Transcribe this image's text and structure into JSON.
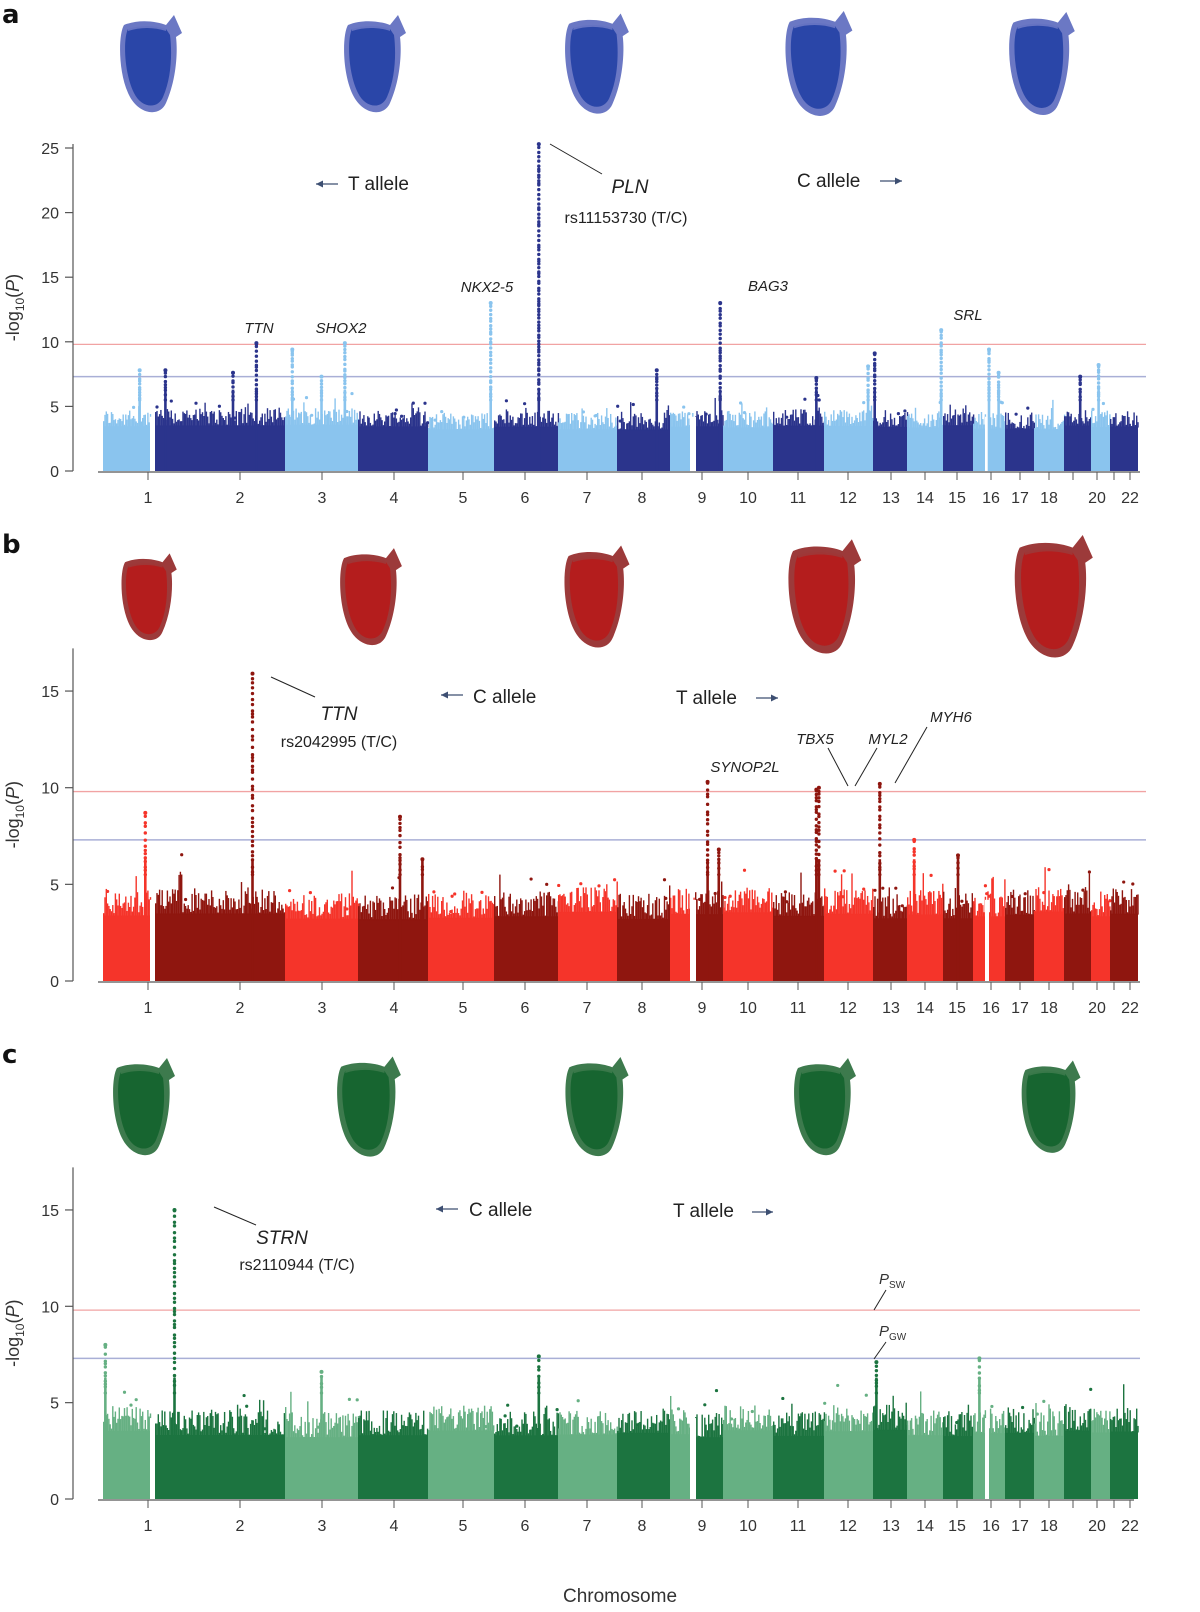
{
  "figure": {
    "xlabel": "Chromosome",
    "panels": [
      {
        "letter": "a",
        "heart_color": "blue",
        "heart_count": 5
      },
      {
        "letter": "b",
        "heart_color": "red",
        "heart_count": 5
      },
      {
        "letter": "c",
        "heart_color": "green",
        "heart_count": 5
      }
    ]
  },
  "colors": {
    "a": {
      "light": "#8ac4ee",
      "dark": "#2b348c",
      "heart_fill": "#2a46a8",
      "heart_rim": "#6b78c4"
    },
    "b": {
      "light": "#f5342a",
      "dark": "#8f160f",
      "heart_fill": "#b41d1d",
      "heart_rim": "#9c3a3a"
    },
    "c": {
      "light": "#66b083",
      "dark": "#1c7440",
      "heart_fill": "#176530",
      "heart_rim": "#3d7a4d"
    },
    "suggestive_line": "#f1a3a3",
    "genomewide_line": "#a9afd6",
    "arrow": "#3d4f72"
  },
  "chart_data": [
    {
      "type": "scatter",
      "subtype": "manhattan",
      "panel": "a",
      "ylabel": "-log10(P)",
      "xlabel": "",
      "ylim": [
        0,
        25
      ],
      "yticks": [
        0,
        5,
        10,
        15,
        20,
        25
      ],
      "chromosomes": [
        "1",
        "2",
        "3",
        "4",
        "5",
        "6",
        "7",
        "8",
        "9",
        "10",
        "11",
        "12",
        "13",
        "14",
        "15",
        "16",
        "17",
        "18",
        "19",
        "20",
        "21",
        "22"
      ],
      "xtick_labels": [
        "1",
        "2",
        "3",
        "4",
        "5",
        "6",
        "7",
        "8",
        "9",
        "10",
        "11",
        "12",
        "13",
        "14",
        "15",
        "16",
        "17",
        "18",
        "20",
        "22"
      ],
      "thresholds": {
        "suggestive": 9.8,
        "genome_wide": 7.3
      },
      "allele_left": "T allele",
      "allele_right": "C allele",
      "background_max": [
        5.5,
        5.2,
        5.0,
        5.0,
        5.0,
        5.0,
        5.0,
        5.0,
        4.8,
        5.0,
        5.0,
        5.0,
        5.0,
        5.0,
        5.0,
        5.0,
        5.0,
        5.0,
        5.0,
        5.0,
        5.0,
        5.0
      ],
      "peaks": [
        {
          "chr": "1",
          "pos": 0.78,
          "value": 7.8
        },
        {
          "chr": "2",
          "pos": 0.08,
          "value": 7.8
        },
        {
          "chr": "2",
          "pos": 0.6,
          "value": 7.6
        },
        {
          "chr": "2",
          "pos": 0.78,
          "value": 9.9,
          "gene": "TTN"
        },
        {
          "chr": "3",
          "pos": 0.1,
          "value": 9.4
        },
        {
          "chr": "3",
          "pos": 0.5,
          "value": 7.3
        },
        {
          "chr": "3",
          "pos": 0.82,
          "value": 9.9,
          "gene": "SHOX2"
        },
        {
          "chr": "5",
          "pos": 0.95,
          "value": 13.0,
          "gene": "NKX2-5"
        },
        {
          "chr": "6",
          "pos": 0.7,
          "value": 25.3,
          "gene": "PLN",
          "snp": "rs11153730 (T/C)"
        },
        {
          "chr": "8",
          "pos": 0.75,
          "value": 7.8
        },
        {
          "chr": "10",
          "pos": 0.9,
          "value": 13.0,
          "gene": "BAG3"
        },
        {
          "chr": "12",
          "pos": 0.85,
          "value": 7.2
        },
        {
          "chr": "13",
          "pos": 0.9,
          "value": 8.1
        },
        {
          "chr": "14",
          "pos": 0.05,
          "value": 9.1
        },
        {
          "chr": "15",
          "pos": 0.95,
          "value": 10.9,
          "gene": "SRL"
        },
        {
          "chr": "17",
          "pos": 0.5,
          "value": 9.4
        },
        {
          "chr": "17",
          "pos": 0.8,
          "value": 7.6
        },
        {
          "chr": "20",
          "pos": 0.6,
          "value": 7.3
        },
        {
          "chr": "21",
          "pos": 0.4,
          "value": 8.2
        }
      ]
    },
    {
      "type": "scatter",
      "subtype": "manhattan",
      "panel": "b",
      "ylabel": "-log10(P)",
      "xlabel": "",
      "ylim": [
        0,
        17
      ],
      "yticks": [
        0,
        5,
        10,
        15
      ],
      "chromosomes": [
        "1",
        "2",
        "3",
        "4",
        "5",
        "6",
        "7",
        "8",
        "9",
        "10",
        "11",
        "12",
        "13",
        "14",
        "15",
        "16",
        "17",
        "18",
        "19",
        "20",
        "21",
        "22"
      ],
      "xtick_labels": [
        "1",
        "2",
        "3",
        "4",
        "5",
        "6",
        "7",
        "8",
        "9",
        "10",
        "11",
        "12",
        "13",
        "14",
        "15",
        "16",
        "17",
        "18",
        "20",
        "22"
      ],
      "thresholds": {
        "suggestive": 9.8,
        "genome_wide": 7.3
      },
      "allele_left": "C allele",
      "allele_right": "T allele",
      "background_max": [
        5.0,
        5.0,
        5.0,
        5.0,
        5.0,
        5.0,
        5.0,
        5.0,
        5.0,
        5.0,
        5.0,
        5.0,
        5.0,
        5.0,
        5.0,
        5.0,
        5.0,
        5.0,
        5.0,
        5.0,
        5.0,
        5.0
      ],
      "peaks": [
        {
          "chr": "1",
          "pos": 0.9,
          "value": 8.7
        },
        {
          "chr": "2",
          "pos": 0.75,
          "value": 15.9,
          "gene": "TTN",
          "snp": "rs2042995 (T/C)"
        },
        {
          "chr": "4",
          "pos": 0.6,
          "value": 8.5
        },
        {
          "chr": "4",
          "pos": 0.92,
          "value": 6.3
        },
        {
          "chr": "10",
          "pos": 0.45,
          "value": 10.3,
          "gene": "SYNOP2L"
        },
        {
          "chr": "10",
          "pos": 0.85,
          "value": 6.8
        },
        {
          "chr": "12",
          "pos": 0.85,
          "value": 9.9,
          "gene": "TBX5"
        },
        {
          "chr": "12",
          "pos": 0.9,
          "value": 10.0,
          "gene": "MYL2"
        },
        {
          "chr": "14",
          "pos": 0.2,
          "value": 10.2,
          "gene": "MYH6"
        },
        {
          "chr": "15",
          "pos": 0.2,
          "value": 7.3
        },
        {
          "chr": "16",
          "pos": 0.5,
          "value": 6.5
        }
      ]
    },
    {
      "type": "scatter",
      "subtype": "manhattan",
      "panel": "c",
      "ylabel": "-log10(P)",
      "xlabel": "Chromosome",
      "ylim": [
        0,
        17
      ],
      "yticks": [
        0,
        5,
        10,
        15
      ],
      "chromosomes": [
        "1",
        "2",
        "3",
        "4",
        "5",
        "6",
        "7",
        "8",
        "9",
        "10",
        "11",
        "12",
        "13",
        "14",
        "15",
        "16",
        "17",
        "18",
        "19",
        "20",
        "21",
        "22"
      ],
      "xtick_labels": [
        "1",
        "2",
        "3",
        "4",
        "5",
        "6",
        "7",
        "8",
        "9",
        "10",
        "11",
        "12",
        "13",
        "14",
        "15",
        "16",
        "17",
        "18",
        "20",
        "22"
      ],
      "thresholds": {
        "suggestive": 9.8,
        "genome_wide": 7.3,
        "suggestive_label": "SW",
        "genome_wide_label": "GW"
      },
      "allele_left": "C allele",
      "allele_right": "T allele",
      "background_max": [
        5.0,
        5.0,
        5.0,
        5.0,
        5.0,
        5.0,
        5.0,
        5.0,
        5.0,
        5.0,
        5.0,
        5.0,
        5.0,
        5.0,
        5.0,
        5.0,
        5.0,
        5.0,
        5.0,
        5.0,
        5.0,
        5.0
      ],
      "peaks": [
        {
          "chr": "1",
          "pos": 0.05,
          "value": 8.0
        },
        {
          "chr": "2",
          "pos": 0.15,
          "value": 15.0,
          "gene": "STRN",
          "snp": "rs2110944 (T/C)"
        },
        {
          "chr": "3",
          "pos": 0.5,
          "value": 6.6
        },
        {
          "chr": "6",
          "pos": 0.7,
          "value": 7.4
        },
        {
          "chr": "14",
          "pos": 0.1,
          "value": 7.1
        },
        {
          "chr": "17",
          "pos": 0.2,
          "value": 7.3
        }
      ]
    }
  ],
  "threshold_labels": {
    "prefix": "P",
    "suggestive_sub": "SW",
    "genome_wide_sub": "GW"
  }
}
